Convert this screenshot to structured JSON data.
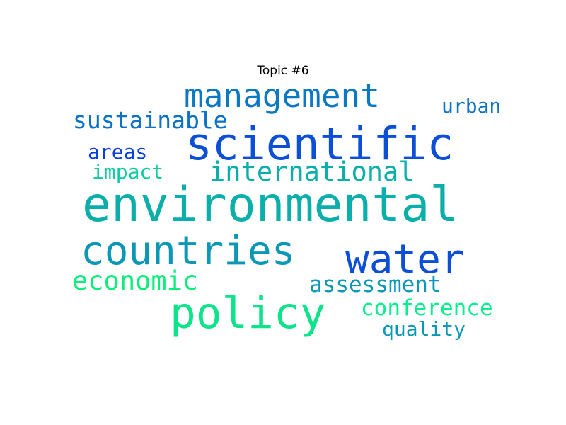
{
  "chart_data": {
    "type": "wordcloud",
    "title": "Topic #6",
    "words": [
      {
        "text": "environmental",
        "weight": 1.0,
        "color": "#0aaeab"
      },
      {
        "text": "scientific",
        "weight": 0.93,
        "color": "#0a4fd6"
      },
      {
        "text": "policy",
        "weight": 0.9,
        "color": "#0ce38a"
      },
      {
        "text": "countries",
        "weight": 0.82,
        "color": "#0b97b6"
      },
      {
        "text": "water",
        "weight": 0.82,
        "color": "#0a4fd6"
      },
      {
        "text": "management",
        "weight": 0.67,
        "color": "#0b78c4"
      },
      {
        "text": "international",
        "weight": 0.55,
        "color": "#0aaeab"
      },
      {
        "text": "economic",
        "weight": 0.55,
        "color": "#0cee7a"
      },
      {
        "text": "sustainable",
        "weight": 0.48,
        "color": "#0b72c8"
      },
      {
        "text": "assessment",
        "weight": 0.46,
        "color": "#0b97b6"
      },
      {
        "text": "conference",
        "weight": 0.46,
        "color": "#0cee8e"
      },
      {
        "text": "urban",
        "weight": 0.42,
        "color": "#0b72c8"
      },
      {
        "text": "areas",
        "weight": 0.42,
        "color": "#0a3fe0"
      },
      {
        "text": "impact",
        "weight": 0.42,
        "color": "#0bcaa0"
      },
      {
        "text": "quality",
        "weight": 0.42,
        "color": "#0b97b6"
      }
    ]
  }
}
